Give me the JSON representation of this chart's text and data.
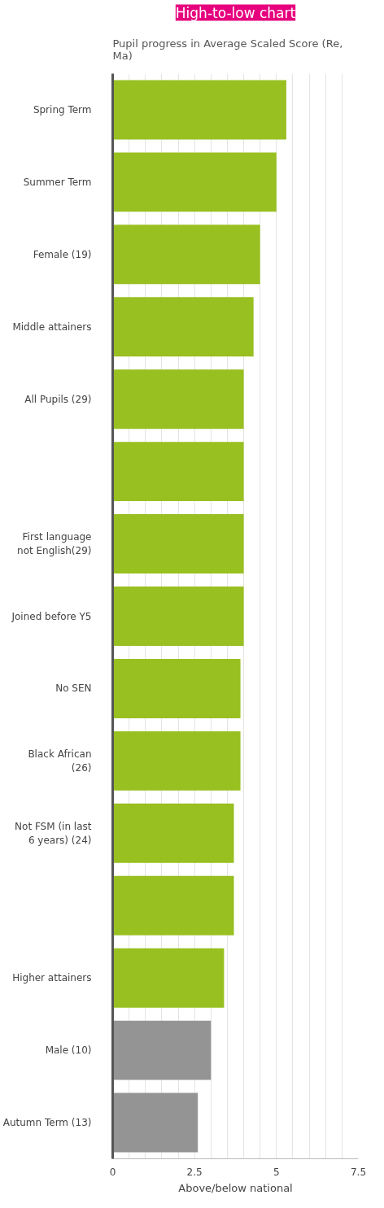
{
  "chart_data": {
    "type": "bar",
    "orientation": "horizontal",
    "title": "High-to-low chart",
    "subtitle": "Pupil progress in Average Scaled Score (Re, Ma)",
    "xlabel": "Above/below national",
    "categories": [
      "Spring Term",
      "Summer Term",
      "Female (19)",
      "Middle attainers",
      "All Pupils (29)",
      null,
      "First language not English(29)",
      "Joined before Y5",
      "No SEN",
      "Black African (26)",
      "Not FSM (in last 6 years) (24)",
      null,
      "Higher attainers",
      "Male (10)",
      "Autumn Term (13)"
    ],
    "values": [
      5.3,
      5.0,
      4.5,
      4.3,
      4.0,
      4.0,
      4.0,
      4.0,
      3.9,
      3.9,
      3.7,
      3.7,
      3.4,
      3.0,
      2.6
    ],
    "colors": [
      "#98c021",
      "#98c021",
      "#98c021",
      "#98c021",
      "#98c021",
      "#98c021",
      "#98c021",
      "#98c021",
      "#98c021",
      "#98c021",
      "#98c021",
      "#98c021",
      "#98c021",
      "#949494",
      "#949494"
    ],
    "xlim": [
      0,
      7.5
    ],
    "xticks": [
      0,
      2.5,
      5,
      7.5
    ],
    "grid": "x"
  }
}
